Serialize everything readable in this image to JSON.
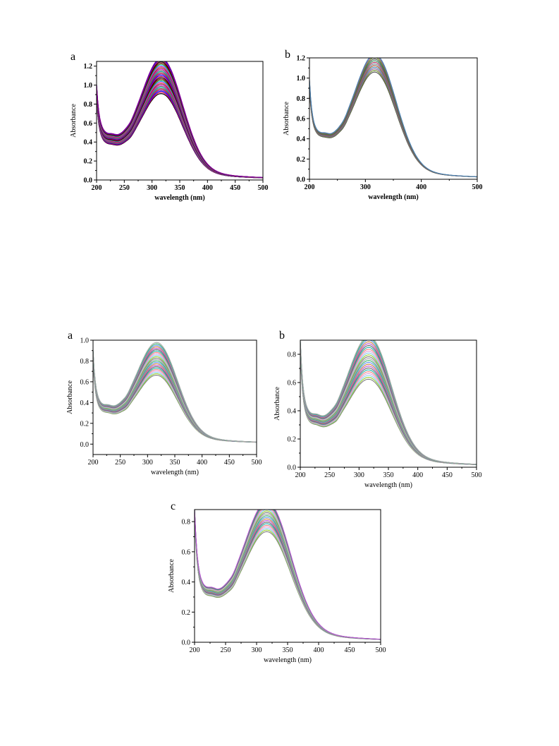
{
  "page": {
    "background": "#ffffff"
  },
  "chart_data": [
    {
      "panel": "a",
      "type": "line",
      "xlabel": "wavelength (nm)",
      "ylabel": "Absorbance",
      "xlim": [
        200,
        500
      ],
      "ylim": [
        0,
        1.25
      ],
      "xticks": [
        200,
        250,
        300,
        350,
        400,
        450,
        500
      ],
      "yticks": [
        0.0,
        0.2,
        0.4,
        0.6,
        0.8,
        1.0,
        1.2
      ],
      "ytick_decimals": 1,
      "bold_labels": true,
      "grid": false,
      "legend": "none",
      "curve_count": 30,
      "peak_wavelength": 318,
      "peak_range": [
        0.82,
        1.17
      ],
      "shoulder_at_260_range": [
        0.47,
        0.6
      ],
      "start_at_200_range": [
        0.83,
        1.0
      ],
      "palette": [
        "#000000",
        "#e6004c",
        "#0000ff",
        "#8b008b",
        "#b22222",
        "#00a0a0",
        "#6b6b6b",
        "#cc00cc",
        "#8b4513",
        "#ff1493",
        "#1e90ff",
        "#228b22",
        "#800000"
      ]
    },
    {
      "panel": "b",
      "type": "line",
      "xlabel": "wavelength (nm)",
      "ylabel": "Absorbance",
      "xlim": [
        200,
        500
      ],
      "ylim": [
        0,
        1.2
      ],
      "xticks": [
        200,
        300,
        400,
        500
      ],
      "yticks": [
        0.0,
        0.2,
        0.4,
        0.6,
        0.8,
        1.0,
        1.2
      ],
      "ytick_decimals": 1,
      "bold_labels": true,
      "grid": false,
      "legend": "none",
      "curve_count": 12,
      "peak_wavelength": 318,
      "peak_range": [
        0.96,
        1.13
      ],
      "shoulder_at_260_range": [
        0.52,
        0.56
      ],
      "start_at_200_range": [
        0.88,
        0.98
      ],
      "palette": [
        "#505050",
        "#6b8e23",
        "#8b5a8b",
        "#4682b4",
        "#a0522d",
        "#708090",
        "#b03060",
        "#2e8b57"
      ]
    },
    {
      "panel": "a",
      "type": "line",
      "xlabel": "wavelength (nm)",
      "ylabel": "Absorbance",
      "xlim": [
        200,
        500
      ],
      "ylim": [
        -0.1,
        1.0
      ],
      "xticks": [
        200,
        250,
        300,
        350,
        400,
        450,
        500
      ],
      "yticks": [
        0.0,
        0.2,
        0.4,
        0.6,
        0.8,
        1.0
      ],
      "ytick_decimals": 1,
      "bold_labels": false,
      "grid": false,
      "legend": "none",
      "curve_count": 24,
      "peak_wavelength": 318,
      "peak_range": [
        0.59,
        0.89
      ],
      "shoulder_at_260_range": [
        0.38,
        0.46
      ],
      "start_at_200_range": [
        0.8,
        0.9
      ],
      "palette": [
        "#808080",
        "#9acd32",
        "#87ceeb",
        "#dda0dd",
        "#f08080",
        "#20b2aa",
        "#696969",
        "#ba55d3",
        "#cd853f",
        "#6495ed",
        "#3cb371",
        "#a9a9a9"
      ]
    },
    {
      "panel": "b",
      "type": "line",
      "xlabel": "wavelength (nm)",
      "ylabel": "Absorbance",
      "xlim": [
        200,
        500
      ],
      "ylim": [
        0,
        0.9
      ],
      "xticks": [
        200,
        250,
        300,
        350,
        400,
        450,
        500
      ],
      "yticks": [
        0.0,
        0.2,
        0.4,
        0.6,
        0.8
      ],
      "ytick_decimals": 1,
      "bold_labels": false,
      "grid": false,
      "legend": "none",
      "curve_count": 24,
      "peak_wavelength": 318,
      "peak_range": [
        0.55,
        0.84
      ],
      "shoulder_at_260_range": [
        0.38,
        0.46
      ],
      "start_at_200_range": [
        0.8,
        0.89
      ],
      "palette": [
        "#808080",
        "#9acd32",
        "#87ceeb",
        "#dda0dd",
        "#f08080",
        "#20b2aa",
        "#696969",
        "#ba55d3",
        "#cd853f",
        "#6495ed",
        "#3cb371",
        "#a9a9a9"
      ]
    },
    {
      "panel": "c",
      "type": "line",
      "xlabel": "wavelength (nm)",
      "ylabel": "Absorbance",
      "xlim": [
        200,
        500
      ],
      "ylim": [
        0,
        0.88
      ],
      "xticks": [
        200,
        250,
        300,
        350,
        400,
        450,
        500
      ],
      "yticks": [
        0.0,
        0.2,
        0.4,
        0.6,
        0.8
      ],
      "ytick_decimals": 1,
      "bold_labels": false,
      "grid": false,
      "legend": "none",
      "curve_count": 20,
      "peak_wavelength": 318,
      "peak_range": [
        0.66,
        0.85
      ],
      "shoulder_at_260_range": [
        0.38,
        0.44
      ],
      "start_at_200_range": [
        0.82,
        0.88
      ],
      "palette": [
        "#808080",
        "#9acd32",
        "#87ceeb",
        "#dda0dd",
        "#f08080",
        "#20b2aa",
        "#696969",
        "#ba55d3",
        "#cd853f",
        "#6495ed",
        "#3cb371",
        "#a9a9a9"
      ]
    }
  ]
}
